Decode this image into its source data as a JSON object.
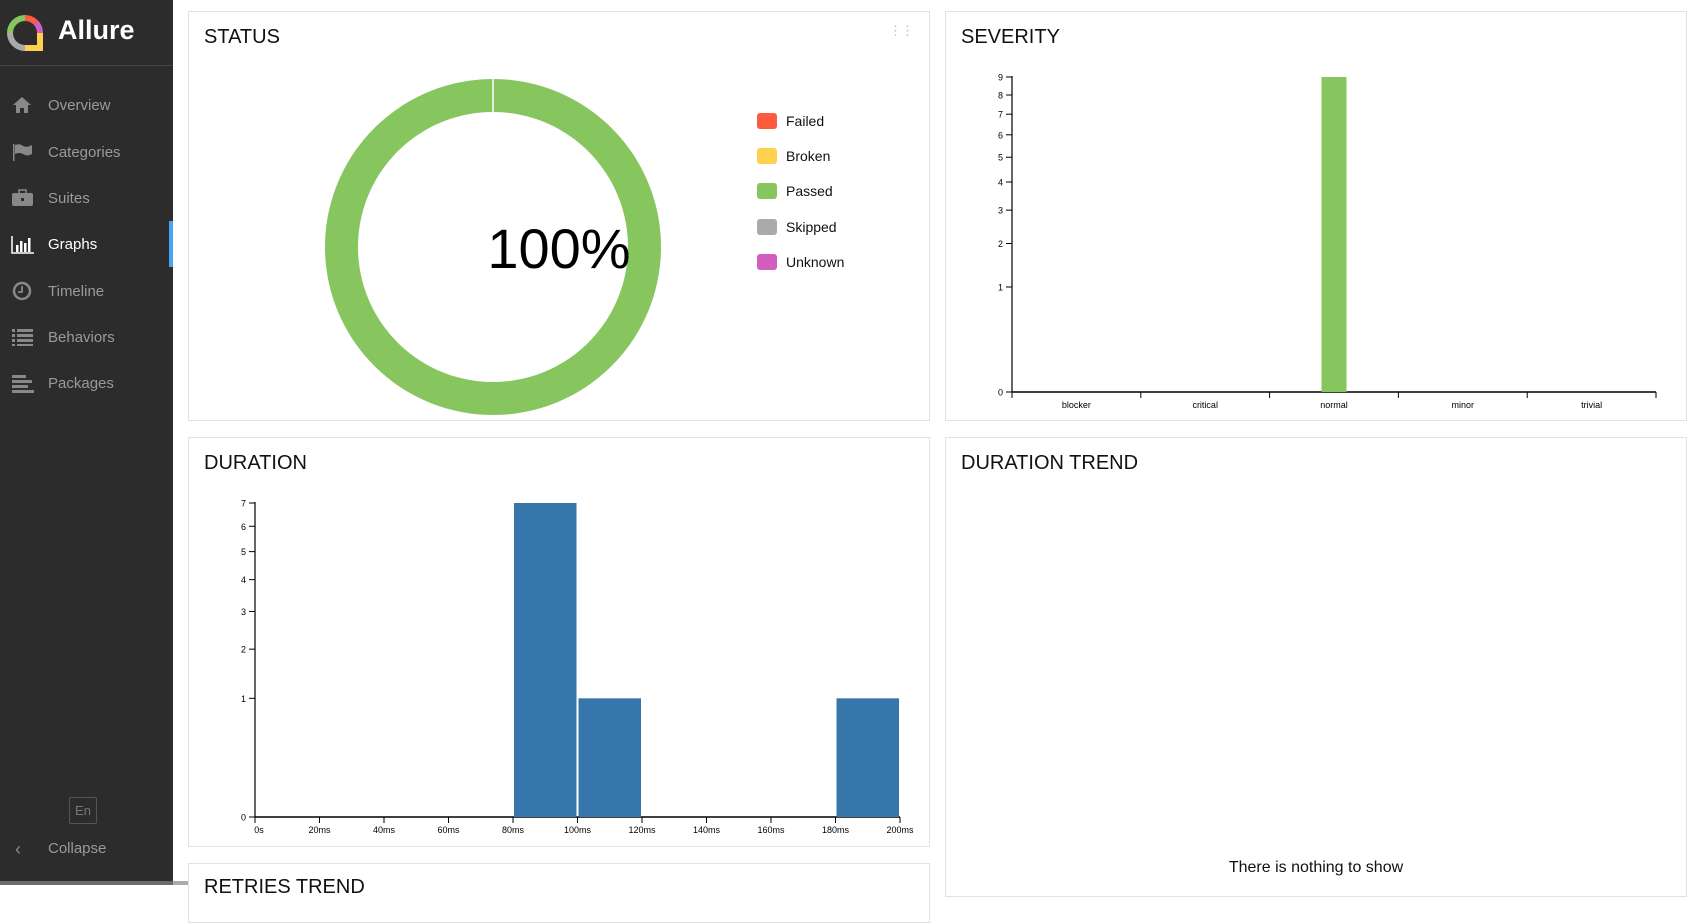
{
  "app": {
    "title": "Allure"
  },
  "sidebar": {
    "items": [
      {
        "label": "Overview",
        "icon": "home-icon"
      },
      {
        "label": "Categories",
        "icon": "flag-icon"
      },
      {
        "label": "Suites",
        "icon": "briefcase-icon"
      },
      {
        "label": "Graphs",
        "icon": "bar-chart-icon",
        "active": true
      },
      {
        "label": "Timeline",
        "icon": "clock-icon"
      },
      {
        "label": "Behaviors",
        "icon": "list-icon"
      },
      {
        "label": "Packages",
        "icon": "align-left-icon"
      }
    ],
    "language": "En",
    "collapse": "Collapse"
  },
  "panels": {
    "status": "STATUS",
    "severity": "SEVERITY",
    "duration": "DURATION",
    "duration_trend": "DURATION TREND",
    "retries_trend": "RETRIES TREND",
    "empty_message": "There is nothing to show"
  },
  "chart_data": [
    {
      "type": "pie",
      "title": "STATUS",
      "center_label": "100%",
      "legend": [
        "Failed",
        "Broken",
        "Passed",
        "Skipped",
        "Unknown"
      ],
      "colors": {
        "Failed": "#fd5a3e",
        "Broken": "#ffd050",
        "Passed": "#87c55f",
        "Skipped": "#aaaaaa",
        "Unknown": "#d35ebe"
      },
      "percent": {
        "Failed": 0,
        "Broken": 0,
        "Passed": 100,
        "Skipped": 0,
        "Unknown": 0
      },
      "legend_placement": "right"
    },
    {
      "type": "bar",
      "title": "SEVERITY",
      "categories": [
        "blocker",
        "critical",
        "normal",
        "minor",
        "trivial"
      ],
      "values": [
        0,
        0,
        9,
        0,
        0
      ],
      "color": "#87c55f",
      "y_scale": "sqrt",
      "ylim": [
        0,
        9
      ],
      "yticks": [
        "0",
        "1",
        "2",
        "3",
        "4",
        "5",
        "6",
        "7",
        "8",
        "9"
      ]
    },
    {
      "type": "bar",
      "title": "DURATION",
      "bins": [
        [
          "0s",
          "20ms"
        ],
        [
          "20ms",
          "40ms"
        ],
        [
          "40ms",
          "60ms"
        ],
        [
          "60ms",
          "80ms"
        ],
        [
          "80ms",
          "100ms"
        ],
        [
          "100ms",
          "120ms"
        ],
        [
          "120ms",
          "140ms"
        ],
        [
          "140ms",
          "160ms"
        ],
        [
          "160ms",
          "180ms"
        ],
        [
          "180ms",
          "200ms"
        ]
      ],
      "values": [
        0,
        0,
        0,
        0,
        7,
        1,
        0,
        0,
        0,
        1
      ],
      "xticks": [
        "0s",
        "20ms",
        "40ms",
        "60ms",
        "80ms",
        "100ms",
        "120ms",
        "140ms",
        "160ms",
        "180ms",
        "200ms"
      ],
      "color": "#3776aa",
      "y_scale": "sqrt",
      "ylim": [
        0,
        7
      ],
      "yticks": [
        "0",
        "1",
        "2",
        "3",
        "4",
        "5",
        "6",
        "7"
      ]
    }
  ]
}
